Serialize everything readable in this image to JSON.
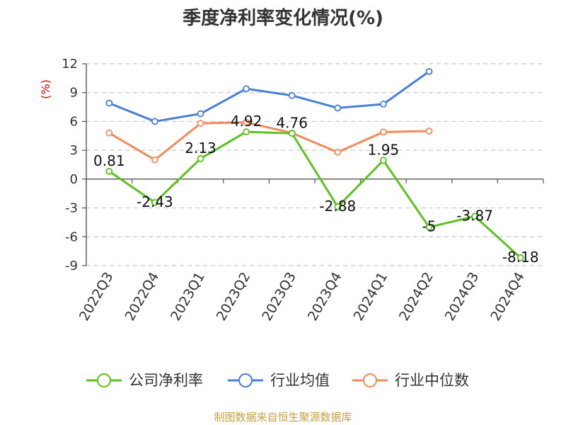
{
  "chart_data": {
    "type": "line",
    "title": "季度净利率变化情况(%)",
    "ylabel": "(%)",
    "categories": [
      "2022Q3",
      "2022Q4",
      "2023Q1",
      "2023Q2",
      "2023Q3",
      "2023Q4",
      "2024Q1",
      "2024Q2",
      "2024Q3",
      "2024Q4"
    ],
    "ylim": [
      -9,
      12
    ],
    "yticks": [
      12,
      9,
      6,
      3,
      0,
      -3,
      -6,
      -9
    ],
    "grid": "horizontal dashed",
    "legend_position": "bottom",
    "series": [
      {
        "name": "公司净利率",
        "color": "#5bc21f",
        "values": [
          0.81,
          -2.43,
          2.13,
          4.92,
          4.76,
          -2.88,
          1.95,
          -5,
          -3.87,
          -8.18
        ],
        "labels": [
          "0.81",
          "-2.43",
          "2.13",
          "4.92",
          "4.76",
          "-2.88",
          "1.95",
          "-5",
          "-3.87",
          "-8.18"
        ]
      },
      {
        "name": "行业均值",
        "color": "#4a7fd8",
        "values": [
          7.9,
          6.0,
          6.8,
          9.4,
          8.7,
          7.4,
          7.8,
          11.2,
          null,
          null
        ]
      },
      {
        "name": "行业中位数",
        "color": "#f28a5a",
        "values": [
          4.8,
          2.0,
          5.8,
          5.9,
          4.8,
          2.8,
          4.9,
          5.0,
          null,
          null
        ]
      }
    ],
    "source": "制图数据来自恒生聚源数据库"
  }
}
